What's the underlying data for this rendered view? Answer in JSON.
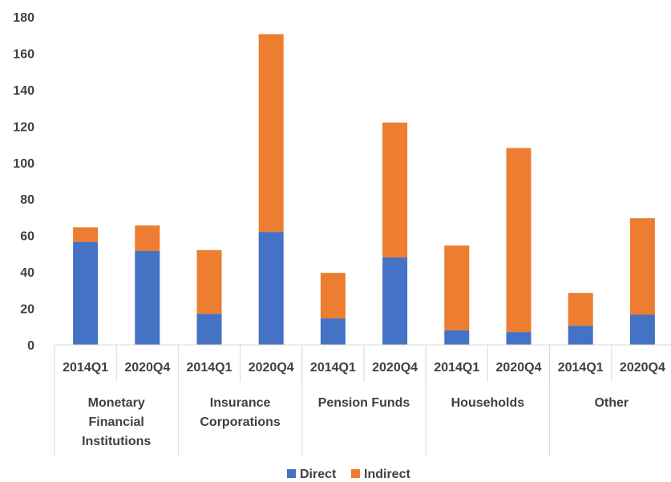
{
  "chart_data": {
    "type": "bar",
    "stacked": true,
    "title": "",
    "xlabel": "",
    "ylabel": "",
    "ylim": [
      0,
      180
    ],
    "yticks": [
      0,
      20,
      40,
      60,
      80,
      100,
      120,
      140,
      160,
      180
    ],
    "categories": [
      "2014Q1",
      "2020Q4",
      "2014Q1",
      "2020Q4",
      "2014Q1",
      "2020Q4",
      "2014Q1",
      "2020Q4",
      "2014Q1",
      "2020Q4"
    ],
    "groups": [
      {
        "lines": [
          "Monetary",
          "Financial",
          "Institutions"
        ]
      },
      {
        "lines": [
          "Insurance",
          "Corporations"
        ]
      },
      {
        "lines": [
          "Pension Funds"
        ]
      },
      {
        "lines": [
          "Households"
        ]
      },
      {
        "lines": [
          "Other"
        ]
      }
    ],
    "series": [
      {
        "name": "Direct",
        "color": "#4472C4",
        "values": [
          56.5,
          51.5,
          17,
          62,
          14.5,
          48,
          8,
          7,
          10.5,
          16.5
        ]
      },
      {
        "name": "Indirect",
        "color": "#ED7D31",
        "values": [
          8,
          14,
          35,
          108.5,
          25,
          74,
          46.5,
          101,
          18,
          53
        ]
      }
    ],
    "legend_position": "bottom",
    "grid": false
  }
}
